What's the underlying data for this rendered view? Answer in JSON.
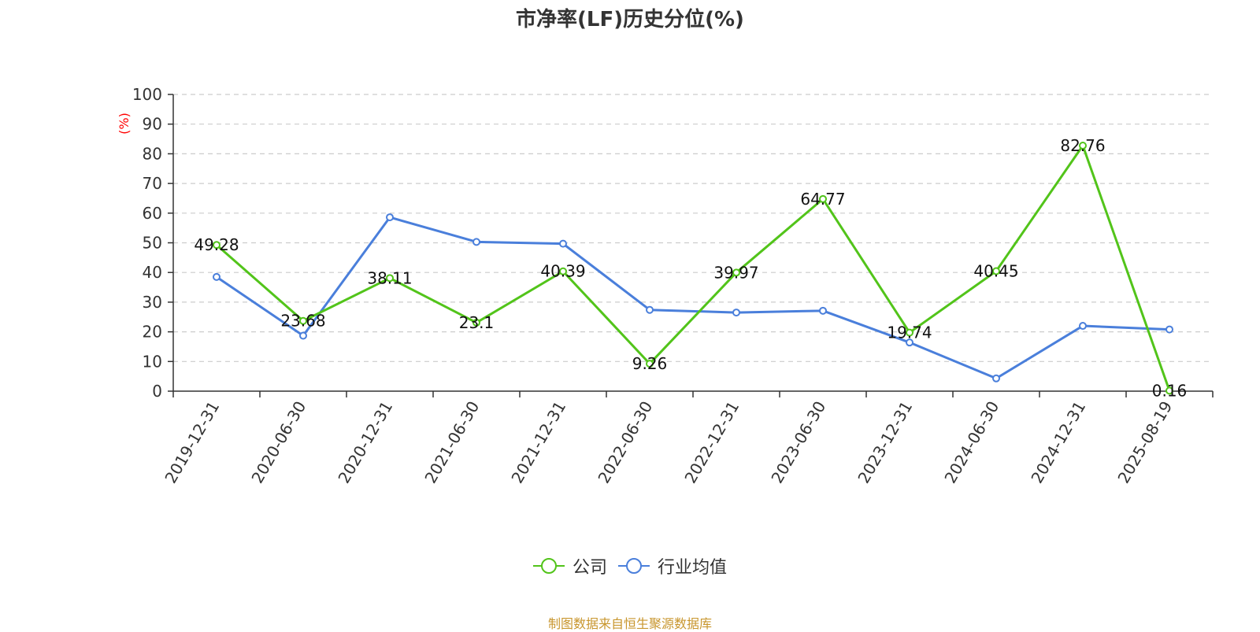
{
  "chart_data": {
    "type": "line",
    "title": "市净率(LF)历史分位(%)",
    "ylabel": "(%)",
    "xlabel": "",
    "ylim": [
      0,
      100
    ],
    "yticks": [
      0,
      10,
      20,
      30,
      40,
      50,
      60,
      70,
      80,
      90,
      100
    ],
    "grid": true,
    "legend_position": "bottom",
    "categories": [
      "2019-12-31",
      "2020-06-30",
      "2020-12-31",
      "2021-06-30",
      "2021-12-31",
      "2022-06-30",
      "2022-12-31",
      "2023-06-30",
      "2023-12-31",
      "2024-06-30",
      "2024-12-31",
      "2025-08-19"
    ],
    "series": [
      {
        "name": "公司",
        "color": "#52c41a",
        "values": [
          49.28,
          23.68,
          38.11,
          23.1,
          40.39,
          9.26,
          39.97,
          64.77,
          19.74,
          40.45,
          82.76,
          0.16
        ],
        "show_labels": true
      },
      {
        "name": "行业均值",
        "color": "#4a7fdb",
        "values": [
          38.5,
          18.7,
          58.6,
          50.3,
          49.7,
          27.4,
          26.5,
          27.1,
          16.4,
          4.3,
          22.0,
          20.8
        ],
        "show_labels": false
      }
    ],
    "source": "制图数据来自恒生聚源数据库",
    "axis_color": "#333333",
    "grid_color": "#cccccc",
    "ylabel_color": "#ff0000"
  }
}
